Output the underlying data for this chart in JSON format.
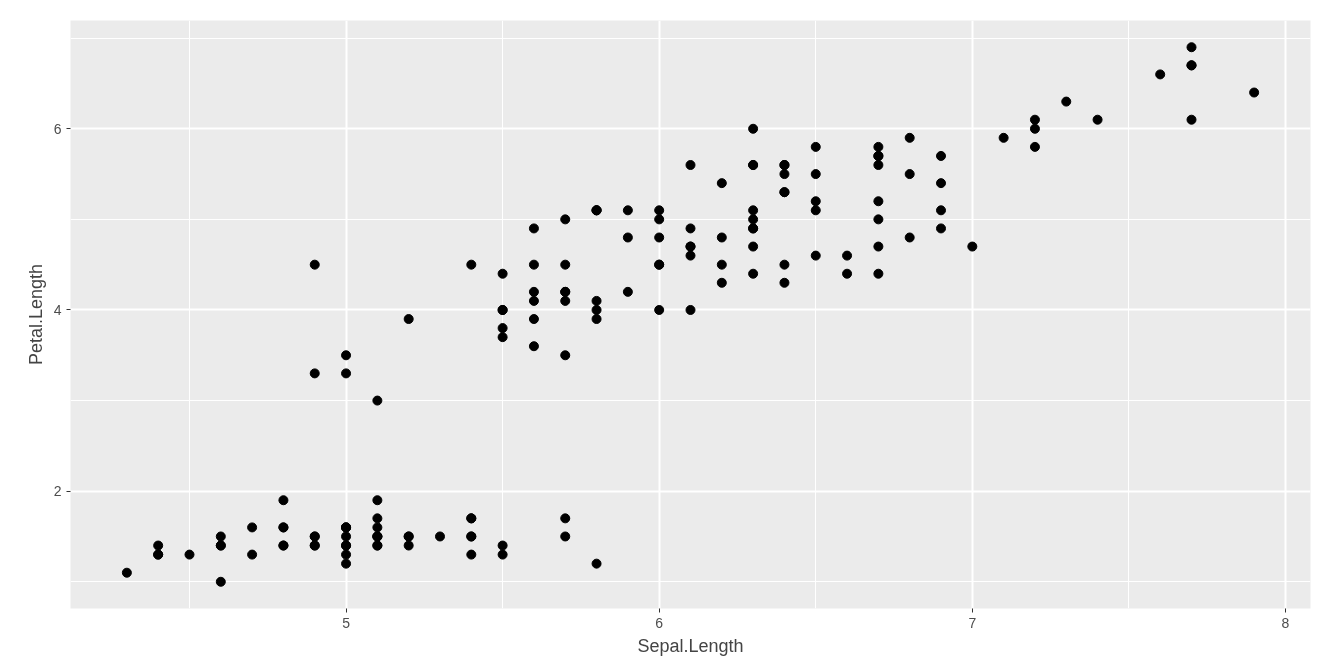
{
  "chart_data": {
    "type": "scatter",
    "xlabel": "Sepal.Length",
    "ylabel": "Petal.Length",
    "xlim": [
      4.12,
      8.08
    ],
    "ylim": [
      0.705,
      7.195
    ],
    "xticks": [
      5,
      6,
      7,
      8
    ],
    "yticks": [
      2,
      4,
      6
    ],
    "grid": true,
    "marker": "circle",
    "series": [
      {
        "color": "#000000",
        "x": [
          5.1,
          4.9,
          4.7,
          4.6,
          5.0,
          5.4,
          4.6,
          5.0,
          4.4,
          4.9,
          5.4,
          4.8,
          4.8,
          4.3,
          5.8,
          5.7,
          5.4,
          5.1,
          5.7,
          5.1,
          5.4,
          5.1,
          4.6,
          5.1,
          4.8,
          5.0,
          5.0,
          5.2,
          5.2,
          4.7,
          4.8,
          5.4,
          5.2,
          5.5,
          4.9,
          5.0,
          5.5,
          4.9,
          4.4,
          5.1,
          5.0,
          4.5,
          4.4,
          5.0,
          5.1,
          4.8,
          5.1,
          4.6,
          5.3,
          5.0,
          7.0,
          6.4,
          6.9,
          5.5,
          6.5,
          5.7,
          6.3,
          4.9,
          6.6,
          5.2,
          5.0,
          5.9,
          6.0,
          6.1,
          5.6,
          6.7,
          5.6,
          5.8,
          6.2,
          5.6,
          5.9,
          6.1,
          6.3,
          6.1,
          6.4,
          6.6,
          6.8,
          6.7,
          6.0,
          5.7,
          5.5,
          5.5,
          5.8,
          6.0,
          5.4,
          6.0,
          6.7,
          6.3,
          5.6,
          5.5,
          5.5,
          6.1,
          5.8,
          5.0,
          5.6,
          5.7,
          5.7,
          6.2,
          5.1,
          5.7,
          6.3,
          5.8,
          7.1,
          6.3,
          6.5,
          7.6,
          4.9,
          7.3,
          6.7,
          7.2,
          6.5,
          6.4,
          6.8,
          5.7,
          5.8,
          6.4,
          6.5,
          7.7,
          7.7,
          6.0,
          6.9,
          5.6,
          7.7,
          6.3,
          6.7,
          7.2,
          6.2,
          6.1,
          6.4,
          7.2,
          7.4,
          7.9,
          6.4,
          6.3,
          6.1,
          7.7,
          6.3,
          6.4,
          6.0,
          6.9,
          6.7,
          6.9,
          5.8,
          6.8,
          6.7,
          6.7,
          6.3,
          6.5,
          6.2,
          5.9
        ],
        "values": [
          1.4,
          1.4,
          1.3,
          1.5,
          1.4,
          1.7,
          1.4,
          1.5,
          1.4,
          1.5,
          1.5,
          1.6,
          1.4,
          1.1,
          1.2,
          1.5,
          1.3,
          1.4,
          1.7,
          1.5,
          1.7,
          1.5,
          1.0,
          1.7,
          1.9,
          1.6,
          1.6,
          1.5,
          1.4,
          1.6,
          1.6,
          1.5,
          1.5,
          1.4,
          1.5,
          1.2,
          1.3,
          1.4,
          1.3,
          1.5,
          1.3,
          1.3,
          1.3,
          1.6,
          1.9,
          1.4,
          1.6,
          1.4,
          1.5,
          1.4,
          4.7,
          4.5,
          4.9,
          4.0,
          4.6,
          4.5,
          4.7,
          3.3,
          4.6,
          3.9,
          3.5,
          4.2,
          4.0,
          4.7,
          3.6,
          4.4,
          4.5,
          4.1,
          4.5,
          3.9,
          4.8,
          4.0,
          4.9,
          4.7,
          4.3,
          4.4,
          4.8,
          5.0,
          4.5,
          3.5,
          3.8,
          3.7,
          3.9,
          5.1,
          4.5,
          4.5,
          4.7,
          4.4,
          4.1,
          4.0,
          4.4,
          4.6,
          4.0,
          3.3,
          4.2,
          4.2,
          4.2,
          4.3,
          3.0,
          4.1,
          6.0,
          5.1,
          5.9,
          5.6,
          5.8,
          6.6,
          4.5,
          6.3,
          5.8,
          6.1,
          5.1,
          5.3,
          5.5,
          5.0,
          5.1,
          5.3,
          5.5,
          6.7,
          6.9,
          5.0,
          5.7,
          4.9,
          6.7,
          4.9,
          5.7,
          6.0,
          4.8,
          4.9,
          5.6,
          5.8,
          6.1,
          6.4,
          5.6,
          5.1,
          5.6,
          6.1,
          5.6,
          5.5,
          4.8,
          5.4,
          5.6,
          5.1,
          5.1,
          5.9,
          5.7,
          5.2,
          5.0,
          5.2,
          5.4,
          5.1
        ]
      }
    ]
  }
}
